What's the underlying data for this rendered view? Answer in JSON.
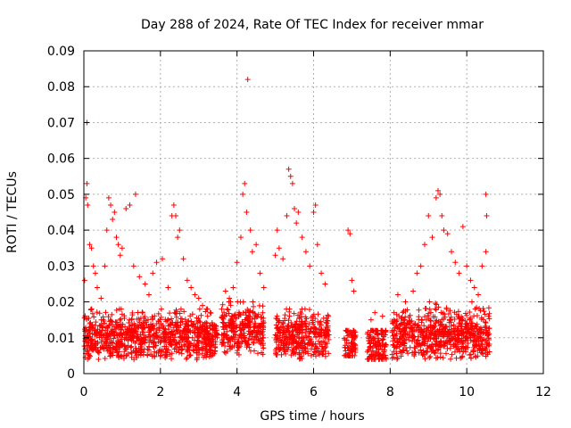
{
  "chart_data": {
    "type": "scatter",
    "title": "Day 288 of 2024, Rate Of TEC Index for receiver mmar",
    "xlabel": "GPS time / hours",
    "ylabel": "ROTI / TECUs",
    "xlim": [
      0,
      12
    ],
    "ylim": [
      0,
      0.09
    ],
    "xticks": [
      0,
      2,
      4,
      6,
      8,
      10,
      12
    ],
    "xtick_labels": [
      "0",
      "2",
      "4",
      "6",
      "8",
      "10",
      "12"
    ],
    "yticks": [
      0,
      0.01,
      0.02,
      0.03,
      0.04,
      0.05,
      0.06,
      0.07,
      0.08,
      0.09
    ],
    "ytick_labels": [
      "0",
      "0.01",
      "0.02",
      "0.03",
      "0.04",
      "0.05",
      "0.06",
      "0.07",
      "0.08",
      "0.09"
    ],
    "grid": true,
    "marker": "+",
    "color": "#ff0000",
    "series": [
      {
        "name": "ROTI",
        "points": [
          [
            0.02,
            0.026
          ],
          [
            0.05,
            0.049
          ],
          [
            0.08,
            0.053
          ],
          [
            0.08,
            0.07
          ],
          [
            0.1,
            0.047
          ],
          [
            0.15,
            0.036
          ],
          [
            0.2,
            0.035
          ],
          [
            0.25,
            0.03
          ],
          [
            0.3,
            0.028
          ],
          [
            0.35,
            0.024
          ],
          [
            0.45,
            0.021
          ],
          [
            0.55,
            0.03
          ],
          [
            0.6,
            0.04
          ],
          [
            0.65,
            0.049
          ],
          [
            0.7,
            0.047
          ],
          [
            0.75,
            0.043
          ],
          [
            0.8,
            0.045
          ],
          [
            0.85,
            0.038
          ],
          [
            0.9,
            0.036
          ],
          [
            0.95,
            0.033
          ],
          [
            1.0,
            0.035
          ],
          [
            1.1,
            0.046
          ],
          [
            1.2,
            0.047
          ],
          [
            1.3,
            0.03
          ],
          [
            1.35,
            0.05
          ],
          [
            1.45,
            0.027
          ],
          [
            1.6,
            0.025
          ],
          [
            1.7,
            0.022
          ],
          [
            1.8,
            0.028
          ],
          [
            1.9,
            0.031
          ],
          [
            2.05,
            0.032
          ],
          [
            2.2,
            0.024
          ],
          [
            2.3,
            0.044
          ],
          [
            2.35,
            0.047
          ],
          [
            2.4,
            0.044
          ],
          [
            2.45,
            0.038
          ],
          [
            2.5,
            0.04
          ],
          [
            2.6,
            0.032
          ],
          [
            2.7,
            0.026
          ],
          [
            2.8,
            0.024
          ],
          [
            2.9,
            0.022
          ],
          [
            3.0,
            0.021
          ],
          [
            3.1,
            0.019
          ],
          [
            3.2,
            0.018
          ],
          [
            3.3,
            0.017
          ],
          [
            3.6,
            0.018
          ],
          [
            3.7,
            0.023
          ],
          [
            3.8,
            0.021
          ],
          [
            3.9,
            0.024
          ],
          [
            4.0,
            0.031
          ],
          [
            4.1,
            0.038
          ],
          [
            4.15,
            0.05
          ],
          [
            4.2,
            0.053
          ],
          [
            4.25,
            0.045
          ],
          [
            4.28,
            0.082
          ],
          [
            4.35,
            0.04
          ],
          [
            4.4,
            0.034
          ],
          [
            4.5,
            0.036
          ],
          [
            4.6,
            0.028
          ],
          [
            4.7,
            0.024
          ],
          [
            5.0,
            0.033
          ],
          [
            5.05,
            0.04
          ],
          [
            5.1,
            0.035
          ],
          [
            5.2,
            0.032
          ],
          [
            5.3,
            0.044
          ],
          [
            5.35,
            0.057
          ],
          [
            5.4,
            0.055
          ],
          [
            5.45,
            0.053
          ],
          [
            5.5,
            0.046
          ],
          [
            5.55,
            0.042
          ],
          [
            5.6,
            0.045
          ],
          [
            5.7,
            0.038
          ],
          [
            5.8,
            0.034
          ],
          [
            5.9,
            0.03
          ],
          [
            6.0,
            0.045
          ],
          [
            6.05,
            0.047
          ],
          [
            6.1,
            0.036
          ],
          [
            6.2,
            0.028
          ],
          [
            6.3,
            0.025
          ],
          [
            6.9,
            0.04
          ],
          [
            6.95,
            0.039
          ],
          [
            7.0,
            0.026
          ],
          [
            7.05,
            0.023
          ],
          [
            7.5,
            0.015
          ],
          [
            7.6,
            0.017
          ],
          [
            7.8,
            0.016
          ],
          [
            8.1,
            0.015
          ],
          [
            8.2,
            0.022
          ],
          [
            8.4,
            0.02
          ],
          [
            8.6,
            0.023
          ],
          [
            8.7,
            0.028
          ],
          [
            8.8,
            0.03
          ],
          [
            8.9,
            0.036
          ],
          [
            9.0,
            0.044
          ],
          [
            9.1,
            0.038
          ],
          [
            9.2,
            0.049
          ],
          [
            9.25,
            0.051
          ],
          [
            9.3,
            0.05
          ],
          [
            9.35,
            0.044
          ],
          [
            9.4,
            0.04
          ],
          [
            9.5,
            0.039
          ],
          [
            9.6,
            0.034
          ],
          [
            9.7,
            0.031
          ],
          [
            9.8,
            0.028
          ],
          [
            9.9,
            0.041
          ],
          [
            10.0,
            0.03
          ],
          [
            10.1,
            0.026
          ],
          [
            10.2,
            0.024
          ],
          [
            10.3,
            0.022
          ],
          [
            10.4,
            0.03
          ],
          [
            10.5,
            0.034
          ],
          [
            10.5,
            0.05
          ],
          [
            10.52,
            0.044
          ]
        ]
      }
    ],
    "dense_clusters": [
      {
        "x_range": [
          0.0,
          3.5
        ],
        "y_range": [
          0.003,
          0.018
        ]
      },
      {
        "x_range": [
          3.6,
          4.7
        ],
        "y_range": [
          0.004,
          0.02
        ]
      },
      {
        "x_range": [
          5.0,
          6.4
        ],
        "y_range": [
          0.003,
          0.018
        ]
      },
      {
        "x_range": [
          6.8,
          7.1
        ],
        "y_range": [
          0.005,
          0.012
        ]
      },
      {
        "x_range": [
          7.4,
          7.9
        ],
        "y_range": [
          0.004,
          0.012
        ]
      },
      {
        "x_range": [
          8.05,
          10.6
        ],
        "y_range": [
          0.002,
          0.02
        ]
      }
    ]
  }
}
